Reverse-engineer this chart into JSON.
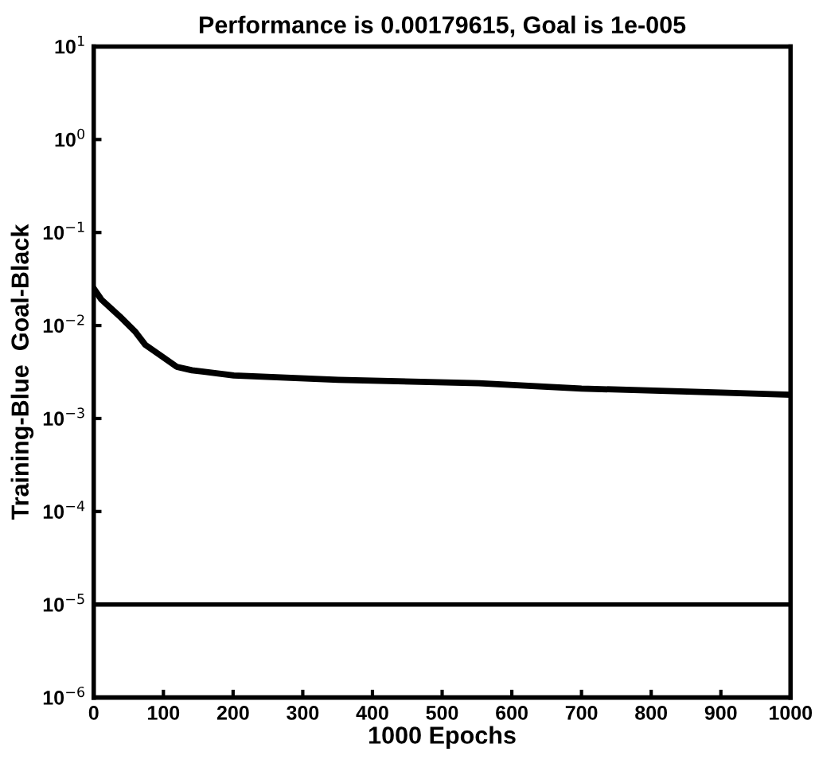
{
  "chart_data": {
    "type": "line",
    "title": "Performance is 0.00179615, Goal is 1e-005",
    "xlabel": "1000 Epochs",
    "ylabel": "Training-Blue  Goal-Black",
    "log": "y",
    "xlim": [
      0,
      1000
    ],
    "xticks": [
      0,
      100,
      200,
      300,
      400,
      500,
      600,
      700,
      800,
      900,
      1000
    ],
    "ylim": [
      1e-06,
      10
    ],
    "yticks": [
      {
        "value": 1e-06,
        "label": "10$^{−6}$"
      },
      {
        "value": 1e-05,
        "label": "10$^{−5}$"
      },
      {
        "value": 0.0001,
        "label": "10$^{−4}$"
      },
      {
        "value": 0.001,
        "label": "10$^{−3}$"
      },
      {
        "value": 0.01,
        "label": "10$^{−2}$"
      },
      {
        "value": 0.1,
        "label": "10$^{−1}$"
      },
      {
        "value": 1,
        "label": "10$^{0}$"
      },
      {
        "value": 10,
        "label": "10$^{1}$"
      }
    ],
    "series": [
      {
        "color": "#000000",
        "x": [
          0,
          11,
          37,
          60,
          74,
          97,
          119,
          141,
          201,
          351,
          553,
          700,
          900,
          1000
        ],
        "values": [
          0.025,
          0.019,
          0.0126,
          0.0085,
          0.0062,
          0.0047,
          0.0036,
          0.0033,
          0.0029,
          0.0026,
          0.0024,
          0.0021,
          0.0019,
          0.0018
        ]
      }
    ],
    "ref_lines": [
      {
        "axis": "y",
        "value": 1e-05,
        "color": "#000000"
      }
    ],
    "grid": false,
    "marker": "none",
    "line_style": "solid"
  }
}
